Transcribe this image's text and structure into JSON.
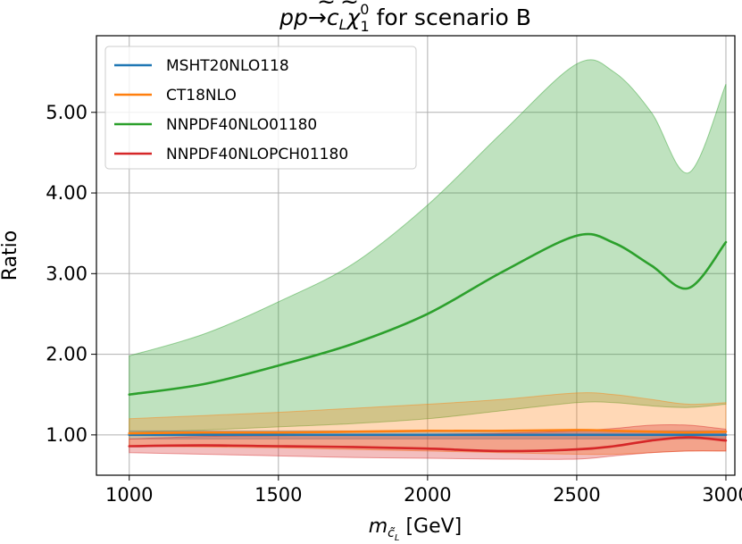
{
  "chart_data": {
    "type": "line",
    "title": "pp→c̃_L χ̃⁰₁ for scenario B",
    "title_parts": {
      "prefix": "pp→",
      "particle1_base": "c",
      "particle1_sub": "L",
      "particle2_base": "χ",
      "particle2_sup": "0",
      "particle2_sub": "1",
      "suffix": " for scenario B"
    },
    "xlabel": "m_{c̃_L} [GeV]",
    "xlabel_parts": {
      "base": "m",
      "sub": "c̃",
      "subsub": "L",
      "unit": " [GeV]"
    },
    "ylabel": "Ratio",
    "xlim": [
      890,
      3030
    ],
    "ylim": [
      0.5,
      5.95
    ],
    "xticks": [
      1000,
      1500,
      2000,
      2500,
      3000
    ],
    "xtick_labels": [
      "1000",
      "1500",
      "2000",
      "2500",
      "3000"
    ],
    "yticks": [
      1.0,
      2.0,
      3.0,
      4.0,
      5.0
    ],
    "ytick_labels": [
      "1.00",
      "2.00",
      "3.00",
      "4.00",
      "5.00"
    ],
    "grid": true,
    "legend_position": "top-left",
    "x": [
      1000,
      1250,
      1500,
      1750,
      2000,
      2250,
      2500,
      2625,
      2750,
      2875,
      3000
    ],
    "series": [
      {
        "name": "MSHT20NLO118",
        "color": "#1f77b4",
        "values": [
          1.0,
          1.0,
          1.0,
          1.0,
          1.0,
          1.0,
          1.0,
          1.0,
          1.0,
          1.0,
          1.0
        ],
        "band_lower": [
          0.95,
          0.95,
          0.95,
          0.95,
          0.95,
          0.95,
          0.95,
          0.95,
          0.95,
          0.95,
          0.95
        ],
        "band_upper": [
          1.05,
          1.05,
          1.05,
          1.05,
          1.05,
          1.05,
          1.05,
          1.05,
          1.05,
          1.05,
          1.05
        ]
      },
      {
        "name": "CT18NLO",
        "color": "#ff7f0e",
        "values": [
          1.02,
          1.03,
          1.03,
          1.04,
          1.05,
          1.05,
          1.06,
          1.05,
          1.04,
          1.03,
          1.04
        ],
        "band_lower": [
          0.86,
          0.85,
          0.84,
          0.82,
          0.8,
          0.78,
          0.76,
          0.76,
          0.78,
          0.8,
          0.8
        ],
        "band_upper": [
          1.2,
          1.24,
          1.28,
          1.33,
          1.38,
          1.44,
          1.52,
          1.5,
          1.44,
          1.38,
          1.4
        ]
      },
      {
        "name": "NNPDF40NLO01180",
        "color": "#2ca02c",
        "values": [
          1.5,
          1.63,
          1.86,
          2.13,
          2.5,
          3.02,
          3.47,
          3.38,
          3.1,
          2.82,
          3.39
        ],
        "band_lower": [
          1.03,
          1.06,
          1.1,
          1.14,
          1.2,
          1.3,
          1.4,
          1.4,
          1.36,
          1.34,
          1.38
        ],
        "band_upper": [
          1.98,
          2.25,
          2.65,
          3.12,
          3.85,
          4.75,
          5.6,
          5.5,
          5.0,
          4.25,
          5.35
        ]
      },
      {
        "name": "NNPDF40NLOPCH01180",
        "color": "#d62728",
        "values": [
          0.86,
          0.87,
          0.86,
          0.85,
          0.83,
          0.8,
          0.82,
          0.86,
          0.93,
          0.97,
          0.93
        ],
        "band_lower": [
          0.78,
          0.76,
          0.74,
          0.72,
          0.71,
          0.7,
          0.7,
          0.74,
          0.78,
          0.8,
          0.8
        ],
        "band_upper": [
          0.95,
          0.98,
          0.99,
          1.0,
          1.01,
          1.02,
          1.05,
          1.08,
          1.12,
          1.12,
          1.07
        ]
      }
    ]
  }
}
